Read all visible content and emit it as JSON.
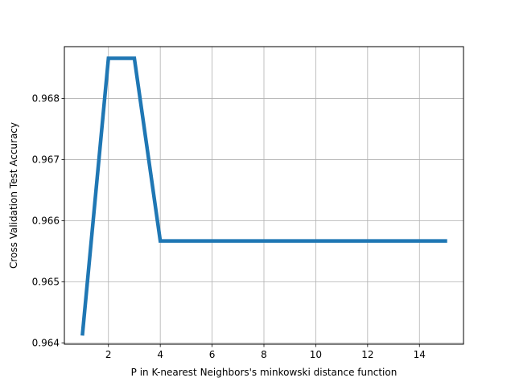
{
  "chart_data": {
    "type": "line",
    "title": "",
    "xlabel": "P in K-nearest Neighbors's minkowski distance function",
    "ylabel": "Cross Validation Test Accuracy",
    "xlim": [
      0.3,
      15.7
    ],
    "ylim": [
      0.96398,
      0.96885
    ],
    "xticks": [
      2,
      4,
      6,
      8,
      10,
      12,
      14
    ],
    "yticks": [
      0.964,
      0.965,
      0.966,
      0.967,
      0.968
    ],
    "xtick_labels": [
      "2",
      "4",
      "6",
      "8",
      "10",
      "12",
      "14"
    ],
    "ytick_labels": [
      "0.964",
      "0.965",
      "0.966",
      "0.967",
      "0.968"
    ],
    "grid": true,
    "line_color": "#1f77b4",
    "series": [
      {
        "x": [
          1,
          2,
          3,
          4,
          5,
          6,
          7,
          8,
          9,
          10,
          11,
          12,
          13,
          14,
          15
        ],
        "values": [
          0.96415,
          0.96866,
          0.96866,
          0.96567,
          0.96567,
          0.96567,
          0.96567,
          0.96567,
          0.96567,
          0.96567,
          0.96567,
          0.96567,
          0.96567,
          0.96567,
          0.96567
        ]
      }
    ]
  }
}
